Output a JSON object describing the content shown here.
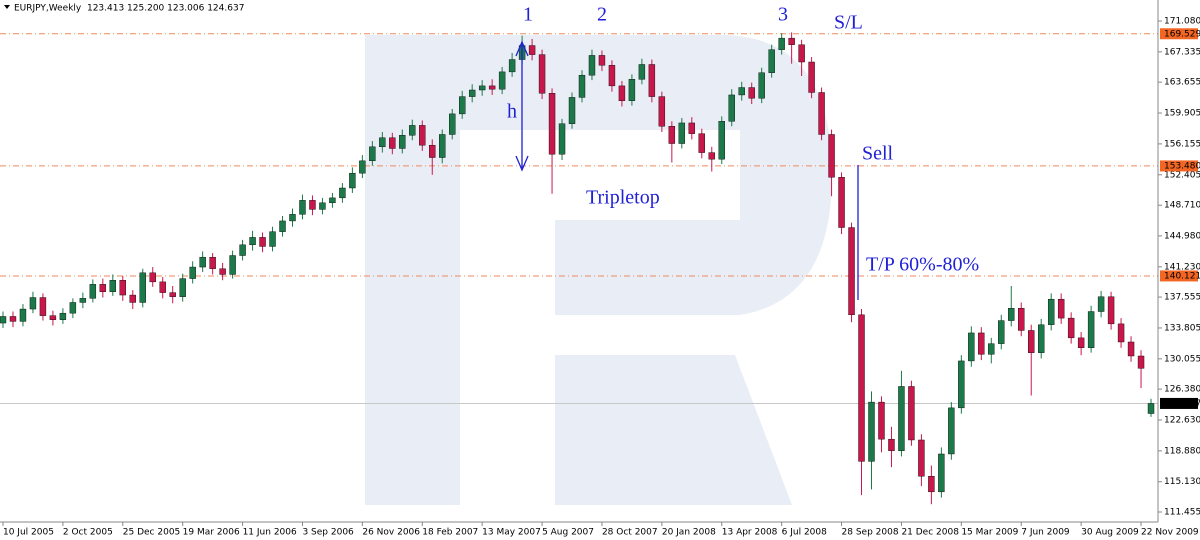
{
  "chart_data": {
    "type": "candlestick",
    "title": "EURJPY,Weekly  123.413 125.200 123.006 124.637",
    "up_color": "#1c7a4a",
    "down_color": "#c8174b",
    "x": [
      0,
      2,
      4,
      6,
      8,
      10,
      12,
      14,
      16,
      18,
      20,
      22,
      24,
      26,
      28,
      30,
      32,
      34,
      36,
      38,
      40,
      42,
      44,
      46,
      48,
      50,
      52,
      54,
      56,
      58,
      60,
      62,
      64,
      66,
      68,
      70,
      72,
      74,
      76,
      78,
      80,
      82,
      84,
      86,
      88,
      90,
      92,
      94,
      96,
      98,
      100,
      102,
      104,
      106,
      108,
      110,
      112,
      114,
      116,
      118,
      120,
      122,
      124,
      126,
      128,
      130,
      132,
      134,
      136,
      138,
      140,
      142,
      144,
      146,
      148,
      150,
      152,
      154,
      156,
      158,
      160,
      162,
      164,
      166,
      168,
      170,
      172,
      174,
      176,
      178,
      180,
      182,
      184,
      186,
      188,
      190,
      192,
      194,
      196,
      198,
      200,
      202,
      204,
      206,
      208,
      210,
      212,
      214,
      216,
      218,
      220,
      222,
      224,
      226,
      228,
      230
    ],
    "open": [
      134.4,
      135.2,
      134.6,
      136.1,
      137.5,
      135.3,
      134.8,
      135.6,
      136.9,
      137.4,
      139.1,
      138.2,
      139.6,
      137.8,
      136.9,
      140.5,
      139.4,
      138.1,
      137.6,
      139.8,
      141.2,
      142.4,
      141.0,
      140.3,
      142.6,
      143.9,
      144.8,
      143.7,
      145.5,
      146.8,
      147.6,
      149.3,
      148.2,
      149.0,
      149.6,
      150.8,
      152.6,
      154.1,
      155.8,
      156.9,
      155.6,
      157.2,
      158.4,
      156.0,
      154.5,
      157.3,
      159.8,
      161.9,
      162.7,
      163.2,
      162.8,
      164.9,
      166.4,
      168.1,
      167.0,
      162.3,
      154.9,
      158.6,
      161.8,
      164.5,
      166.9,
      165.7,
      163.2,
      161.4,
      164.0,
      165.8,
      161.9,
      158.3,
      156.2,
      158.7,
      157.4,
      155.1,
      154.3,
      158.9,
      162.1,
      163.0,
      161.7,
      164.8,
      167.6,
      169.0,
      168.2,
      166.1,
      162.4,
      157.3,
      152.1,
      146.0,
      135.4,
      117.6,
      124.8,
      120.3,
      118.9,
      126.7,
      120.2,
      115.8,
      113.9,
      118.5,
      124.1,
      129.8,
      133.2,
      130.6,
      131.9,
      134.7,
      136.2,
      133.5,
      130.8,
      134.2,
      137.3,
      135.0,
      132.6,
      131.4,
      135.8,
      137.6,
      134.3,
      132.1,
      130.4,
      123.413
    ],
    "high": [
      135.8,
      135.8,
      136.7,
      138.2,
      138.0,
      135.9,
      136.2,
      137.4,
      138.1,
      139.7,
      139.8,
      140.3,
      140.1,
      138.4,
      141.0,
      141.2,
      140.0,
      138.9,
      140.4,
      141.9,
      143.1,
      142.9,
      141.7,
      143.2,
      144.5,
      145.6,
      145.4,
      146.1,
      147.4,
      148.3,
      150.0,
      149.9,
      149.6,
      150.2,
      151.4,
      153.3,
      154.8,
      156.5,
      157.6,
      157.5,
      157.9,
      159.1,
      159.0,
      156.7,
      157.9,
      160.4,
      162.6,
      163.4,
      163.9,
      164.0,
      165.5,
      167.2,
      169.3,
      168.9,
      167.6,
      162.9,
      159.2,
      162.4,
      165.1,
      167.6,
      167.5,
      166.3,
      163.8,
      164.6,
      166.5,
      166.4,
      162.5,
      158.9,
      159.3,
      159.4,
      158.0,
      155.8,
      159.5,
      162.8,
      163.7,
      163.6,
      165.4,
      168.2,
      169.6,
      169.7,
      168.8,
      166.7,
      163.0,
      157.9,
      152.7,
      146.6,
      136.1,
      126.1,
      125.5,
      121.8,
      128.6,
      127.4,
      120.9,
      117.1,
      119.3,
      124.8,
      130.5,
      134.0,
      133.9,
      132.6,
      135.4,
      138.9,
      136.9,
      134.2,
      134.9,
      138.0,
      138.0,
      135.7,
      133.3,
      136.5,
      138.3,
      138.2,
      135.0,
      132.8,
      131.1,
      125.2
    ],
    "low": [
      133.8,
      133.9,
      134.0,
      135.6,
      134.7,
      134.1,
      134.3,
      135.0,
      136.2,
      136.9,
      137.5,
      137.7,
      137.1,
      136.1,
      136.3,
      138.8,
      137.4,
      136.8,
      137.0,
      139.2,
      140.6,
      140.3,
      139.6,
      139.8,
      142.0,
      143.2,
      143.0,
      143.1,
      144.9,
      146.1,
      147.0,
      147.5,
      147.6,
      148.4,
      149.0,
      150.2,
      152.0,
      153.5,
      155.1,
      154.9,
      155.0,
      156.6,
      155.3,
      152.4,
      153.8,
      156.7,
      159.2,
      161.2,
      162.0,
      162.1,
      162.2,
      164.3,
      165.8,
      166.3,
      161.6,
      150.1,
      154.2,
      158.0,
      161.2,
      163.9,
      165.0,
      162.5,
      160.7,
      160.8,
      163.4,
      161.2,
      157.6,
      153.9,
      155.6,
      156.7,
      154.4,
      152.8,
      153.7,
      158.3,
      161.4,
      161.0,
      161.1,
      164.2,
      167.0,
      165.9,
      164.4,
      161.7,
      156.6,
      149.8,
      145.2,
      134.5,
      113.5,
      114.2,
      118.7,
      116.9,
      118.2,
      119.5,
      114.6,
      112.4,
      113.2,
      117.8,
      123.4,
      129.1,
      129.9,
      129.5,
      131.2,
      134.0,
      132.8,
      125.6,
      130.1,
      133.5,
      134.3,
      131.9,
      130.5,
      130.8,
      135.1,
      133.6,
      131.4,
      129.7,
      126.5,
      123.006
    ],
    "close": [
      135.2,
      134.6,
      136.1,
      137.5,
      135.3,
      134.8,
      135.6,
      136.9,
      137.4,
      139.1,
      138.2,
      139.6,
      137.8,
      136.9,
      140.5,
      139.4,
      138.1,
      137.6,
      139.8,
      141.2,
      142.4,
      141.0,
      140.3,
      142.6,
      143.9,
      144.8,
      143.7,
      145.5,
      146.8,
      147.6,
      149.3,
      148.2,
      149.0,
      149.6,
      150.8,
      152.6,
      154.1,
      155.8,
      156.9,
      155.6,
      157.2,
      158.4,
      156.0,
      154.5,
      157.3,
      159.8,
      161.9,
      162.7,
      163.2,
      162.8,
      164.9,
      166.4,
      168.1,
      167.0,
      162.3,
      154.9,
      158.6,
      161.8,
      164.5,
      166.9,
      165.7,
      163.2,
      161.4,
      164.0,
      165.8,
      161.9,
      158.3,
      156.2,
      158.7,
      157.4,
      155.1,
      154.3,
      158.9,
      162.1,
      163.0,
      161.7,
      164.8,
      167.6,
      169.0,
      168.2,
      166.1,
      162.4,
      157.3,
      152.1,
      146.0,
      135.4,
      117.6,
      124.8,
      120.3,
      118.9,
      126.7,
      120.2,
      115.8,
      113.9,
      118.5,
      124.1,
      129.8,
      133.2,
      130.6,
      131.9,
      134.7,
      136.2,
      133.5,
      130.8,
      134.2,
      137.3,
      135.0,
      132.6,
      131.4,
      135.8,
      137.6,
      134.3,
      132.1,
      130.4,
      128.9,
      124.637
    ],
    "xlim": [
      -0.6,
      231.4
    ],
    "xticks": [
      {
        "value": 0,
        "label": "10 Jul 2005"
      },
      {
        "value": 12,
        "label": "2 Oct 2005"
      },
      {
        "value": 24,
        "label": "25 Dec 2005"
      },
      {
        "value": 36,
        "label": "19 Mar 2006"
      },
      {
        "value": 48,
        "label": "11 Jun 2006"
      },
      {
        "value": 60,
        "label": "3 Sep 2006"
      },
      {
        "value": 72,
        "label": "26 Nov 2006"
      },
      {
        "value": 84,
        "label": "18 Feb 2007"
      },
      {
        "value": 96,
        "label": "13 May 2007"
      },
      {
        "value": 108,
        "label": "5 Aug 2007"
      },
      {
        "value": 120,
        "label": "28 Oct 2007"
      },
      {
        "value": 132,
        "label": "20 Jan 2008"
      },
      {
        "value": 144,
        "label": "13 Apr 2008"
      },
      {
        "value": 156,
        "label": "6 Jul 2008"
      },
      {
        "value": 168,
        "label": "28 Sep 2008"
      },
      {
        "value": 180,
        "label": "21 Dec 2008"
      },
      {
        "value": 192,
        "label": "15 Mar 2009"
      },
      {
        "value": 204,
        "label": "7 Jun 2009"
      },
      {
        "value": 216,
        "label": "30 Aug 2009"
      },
      {
        "value": 228,
        "label": "22 Nov 2009"
      }
    ],
    "ylim": [
      110.24,
      173.63
    ],
    "yticks": [
      {
        "value": 171.08,
        "label": "171.080"
      },
      167.335,
      163.655,
      159.905,
      156.155,
      152.405,
      {
        "value": 148.71,
        "label": "148.710"
      },
      {
        "value": 144.98,
        "label": "144.980"
      },
      {
        "value": 141.23,
        "label": "141.230"
      },
      137.555,
      133.805,
      130.055,
      {
        "value": 126.38,
        "label": "126.380"
      },
      {
        "value": 122.63,
        "label": "122.630"
      },
      {
        "value": 118.88,
        "label": "118.880"
      },
      {
        "value": 115.13,
        "label": "115.130"
      },
      111.455
    ],
    "levels": [
      {
        "value": 169.529,
        "line_color": "#f08a5d",
        "label_color": "#f26522",
        "dashed": true
      },
      {
        "value": 153.48,
        "label": "153.480",
        "line_color": "#f08a5d",
        "label_color": "#f26522",
        "dashed": true
      },
      {
        "value": 140.121,
        "line_color": "#f08a5d",
        "label_color": "#f26522",
        "dashed": true
      },
      {
        "value": 124.637,
        "line_color": "#c8c8c8",
        "label_color": "#000000",
        "dashed": false
      }
    ],
    "annotations": [
      "1",
      "2",
      "3",
      "S/L",
      "h",
      "Tripletop",
      "Sell",
      "T/P 60%-80%"
    ]
  }
}
